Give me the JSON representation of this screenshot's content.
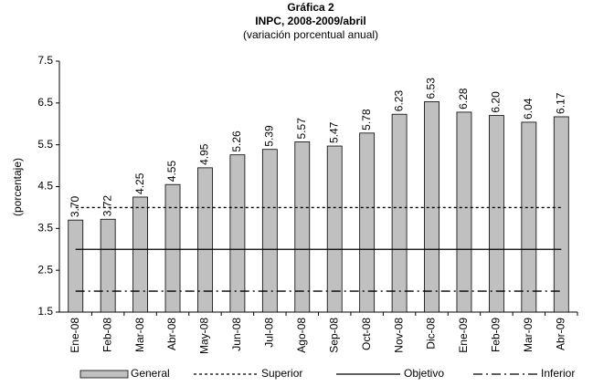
{
  "chart_data": {
    "type": "bar",
    "title": "Gráfica 2",
    "subtitle": "INPC, 2008-2009/abril",
    "subtitle2": "(variación porcentual anual)",
    "y_label": "(porcentaje)",
    "categories": [
      "Ene-08",
      "Feb-08",
      "Mar-08",
      "Abr-08",
      "May-08",
      "Jun-08",
      "Jul-08",
      "Ago-08",
      "Sep-08",
      "Oct-08",
      "Nov-08",
      "Dic-08",
      "Ene-09",
      "Feb-09",
      "Mar-09",
      "Abr-09"
    ],
    "series": [
      {
        "name": "General",
        "style": "bar",
        "color": "#c0c0c0",
        "values": [
          3.7,
          3.72,
          4.25,
          4.55,
          4.95,
          5.26,
          5.39,
          5.57,
          5.47,
          5.78,
          6.23,
          6.53,
          6.28,
          6.2,
          6.04,
          6.17
        ],
        "value_labels": [
          "3.70",
          "3.72",
          "4.25",
          "4.55",
          "4.95",
          "5.26",
          "5.39",
          "5.57",
          "5.47",
          "5.78",
          "6.23",
          "6.53",
          "6.28",
          "6.20",
          "6.04",
          "6.17"
        ]
      },
      {
        "name": "Superior",
        "style": "dotted",
        "color": "#000000",
        "values": [
          4,
          4,
          4,
          4,
          4,
          4,
          4,
          4,
          4,
          4,
          4,
          4,
          4,
          4,
          4,
          4
        ]
      },
      {
        "name": "Objetivo",
        "style": "solid",
        "color": "#000000",
        "values": [
          3,
          3,
          3,
          3,
          3,
          3,
          3,
          3,
          3,
          3,
          3,
          3,
          3,
          3,
          3,
          3
        ]
      },
      {
        "name": "Inferior",
        "style": "dashdot",
        "color": "#000000",
        "values": [
          2,
          2,
          2,
          2,
          2,
          2,
          2,
          2,
          2,
          2,
          2,
          2,
          2,
          2,
          2,
          2
        ]
      }
    ],
    "ylim": [
      1.5,
      7.5
    ],
    "yticks": [
      1.5,
      2.5,
      3.5,
      4.5,
      5.5,
      6.5,
      7.5
    ],
    "legend": "bottom"
  }
}
